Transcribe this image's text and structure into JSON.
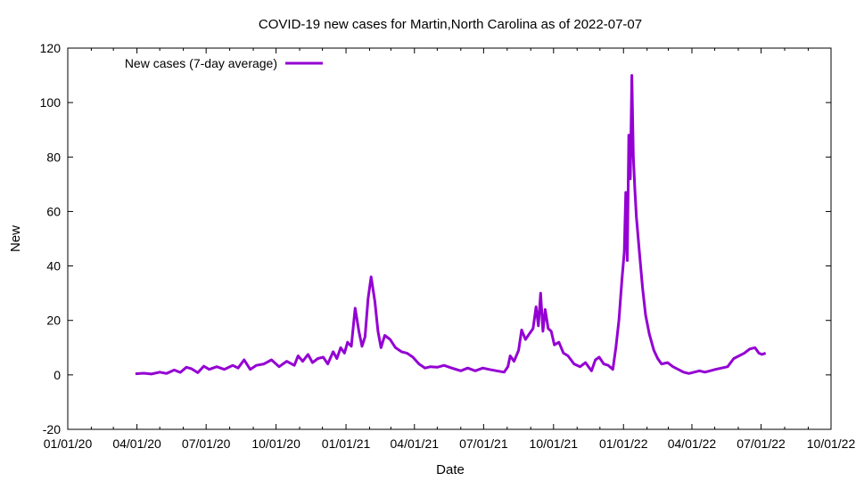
{
  "chart_data": {
    "type": "line",
    "title": "COVID-19 new cases for Martin,North Carolina as of 2022-07-07",
    "xlabel": "Date",
    "ylabel": "New",
    "xlim": [
      "2020-01-01",
      "2022-10-01"
    ],
    "ylim": [
      -20,
      120
    ],
    "x_ticks": [
      "01/01/20",
      "04/01/20",
      "07/01/20",
      "10/01/20",
      "01/01/21",
      "04/01/21",
      "07/01/21",
      "10/01/21",
      "01/01/22",
      "04/01/22",
      "07/01/22",
      "10/01/22"
    ],
    "y_ticks": [
      -20,
      0,
      20,
      40,
      60,
      80,
      100,
      120
    ],
    "grid": false,
    "legend_position": "top-left",
    "series": [
      {
        "name": "New cases (7-day average)",
        "color": "#9400d3",
        "points": [
          [
            "2020-03-30",
            0.4
          ],
          [
            "2020-04-10",
            0.6
          ],
          [
            "2020-04-20",
            0.3
          ],
          [
            "2020-05-01",
            1.0
          ],
          [
            "2020-05-10",
            0.5
          ],
          [
            "2020-05-20",
            1.8
          ],
          [
            "2020-05-28",
            0.9
          ],
          [
            "2020-06-05",
            2.8
          ],
          [
            "2020-06-12",
            2.2
          ],
          [
            "2020-06-20",
            0.8
          ],
          [
            "2020-06-28",
            3.2
          ],
          [
            "2020-07-05",
            2.0
          ],
          [
            "2020-07-15",
            3.0
          ],
          [
            "2020-07-25",
            2.0
          ],
          [
            "2020-08-05",
            3.5
          ],
          [
            "2020-08-12",
            2.5
          ],
          [
            "2020-08-20",
            5.5
          ],
          [
            "2020-08-28",
            2.0
          ],
          [
            "2020-09-05",
            3.5
          ],
          [
            "2020-09-15",
            4.0
          ],
          [
            "2020-09-25",
            5.5
          ],
          [
            "2020-10-05",
            3.0
          ],
          [
            "2020-10-15",
            5.0
          ],
          [
            "2020-10-25",
            3.5
          ],
          [
            "2020-10-30",
            7.0
          ],
          [
            "2020-11-05",
            5.0
          ],
          [
            "2020-11-12",
            7.5
          ],
          [
            "2020-11-18",
            4.5
          ],
          [
            "2020-11-25",
            6.0
          ],
          [
            "2020-12-02",
            6.5
          ],
          [
            "2020-12-08",
            4.0
          ],
          [
            "2020-12-15",
            8.5
          ],
          [
            "2020-12-20",
            6.0
          ],
          [
            "2020-12-25",
            10.0
          ],
          [
            "2020-12-30",
            8.0
          ],
          [
            "2021-01-03",
            12.0
          ],
          [
            "2021-01-08",
            10.5
          ],
          [
            "2021-01-13",
            24.5
          ],
          [
            "2021-01-18",
            16.0
          ],
          [
            "2021-01-22",
            10.5
          ],
          [
            "2021-01-26",
            14.0
          ],
          [
            "2021-01-30",
            28.0
          ],
          [
            "2021-02-03",
            36.0
          ],
          [
            "2021-02-08",
            27.0
          ],
          [
            "2021-02-12",
            16.0
          ],
          [
            "2021-02-16",
            10.0
          ],
          [
            "2021-02-21",
            14.5
          ],
          [
            "2021-02-28",
            13.0
          ],
          [
            "2021-03-07",
            10.0
          ],
          [
            "2021-03-15",
            8.5
          ],
          [
            "2021-03-22",
            8.0
          ],
          [
            "2021-03-30",
            6.5
          ],
          [
            "2021-04-07",
            4.0
          ],
          [
            "2021-04-15",
            2.5
          ],
          [
            "2021-04-22",
            3.0
          ],
          [
            "2021-05-01",
            2.8
          ],
          [
            "2021-05-10",
            3.5
          ],
          [
            "2021-05-20",
            2.5
          ],
          [
            "2021-06-01",
            1.5
          ],
          [
            "2021-06-10",
            2.5
          ],
          [
            "2021-06-20",
            1.5
          ],
          [
            "2021-06-30",
            2.5
          ],
          [
            "2021-07-08",
            2.0
          ],
          [
            "2021-07-18",
            1.5
          ],
          [
            "2021-07-28",
            1.0
          ],
          [
            "2021-08-02",
            3.0
          ],
          [
            "2021-08-05",
            7.0
          ],
          [
            "2021-08-10",
            5.0
          ],
          [
            "2021-08-16",
            9.0
          ],
          [
            "2021-08-20",
            16.5
          ],
          [
            "2021-08-25",
            13.0
          ],
          [
            "2021-08-30",
            15.0
          ],
          [
            "2021-09-04",
            17.0
          ],
          [
            "2021-09-08",
            25.0
          ],
          [
            "2021-09-11",
            18.0
          ],
          [
            "2021-09-14",
            30.0
          ],
          [
            "2021-09-17",
            16.0
          ],
          [
            "2021-09-20",
            24.0
          ],
          [
            "2021-09-24",
            17.0
          ],
          [
            "2021-09-28",
            16.0
          ],
          [
            "2021-10-02",
            11.0
          ],
          [
            "2021-10-08",
            12.0
          ],
          [
            "2021-10-14",
            8.0
          ],
          [
            "2021-10-20",
            7.0
          ],
          [
            "2021-10-28",
            4.0
          ],
          [
            "2021-11-05",
            3.0
          ],
          [
            "2021-11-12",
            4.5
          ],
          [
            "2021-11-20",
            1.5
          ],
          [
            "2021-11-25",
            5.5
          ],
          [
            "2021-11-30",
            6.5
          ],
          [
            "2021-12-06",
            4.0
          ],
          [
            "2021-12-12",
            3.5
          ],
          [
            "2021-12-18",
            2.0
          ],
          [
            "2021-12-22",
            10.0
          ],
          [
            "2021-12-26",
            20.0
          ],
          [
            "2021-12-30",
            35.0
          ],
          [
            "2022-01-02",
            45.0
          ],
          [
            "2022-01-04",
            67.0
          ],
          [
            "2022-01-06",
            42.0
          ],
          [
            "2022-01-08",
            88.0
          ],
          [
            "2022-01-10",
            72.0
          ],
          [
            "2022-01-12",
            110.0
          ],
          [
            "2022-01-14",
            80.0
          ],
          [
            "2022-01-16",
            68.0
          ],
          [
            "2022-01-18",
            58.0
          ],
          [
            "2022-01-22",
            45.0
          ],
          [
            "2022-01-26",
            32.0
          ],
          [
            "2022-01-30",
            22.0
          ],
          [
            "2022-02-04",
            15.0
          ],
          [
            "2022-02-10",
            9.0
          ],
          [
            "2022-02-15",
            6.0
          ],
          [
            "2022-02-20",
            4.0
          ],
          [
            "2022-02-28",
            4.5
          ],
          [
            "2022-03-07",
            3.0
          ],
          [
            "2022-03-14",
            2.0
          ],
          [
            "2022-03-21",
            1.0
          ],
          [
            "2022-03-28",
            0.5
          ],
          [
            "2022-04-04",
            1.0
          ],
          [
            "2022-04-11",
            1.5
          ],
          [
            "2022-04-18",
            1.0
          ],
          [
            "2022-04-25",
            1.5
          ],
          [
            "2022-05-02",
            2.0
          ],
          [
            "2022-05-10",
            2.5
          ],
          [
            "2022-05-18",
            3.0
          ],
          [
            "2022-05-26",
            6.0
          ],
          [
            "2022-06-02",
            7.0
          ],
          [
            "2022-06-09",
            8.0
          ],
          [
            "2022-06-16",
            9.5
          ],
          [
            "2022-06-23",
            10.0
          ],
          [
            "2022-06-28",
            8.0
          ],
          [
            "2022-07-02",
            7.5
          ],
          [
            "2022-07-07",
            8.0
          ]
        ]
      }
    ]
  }
}
